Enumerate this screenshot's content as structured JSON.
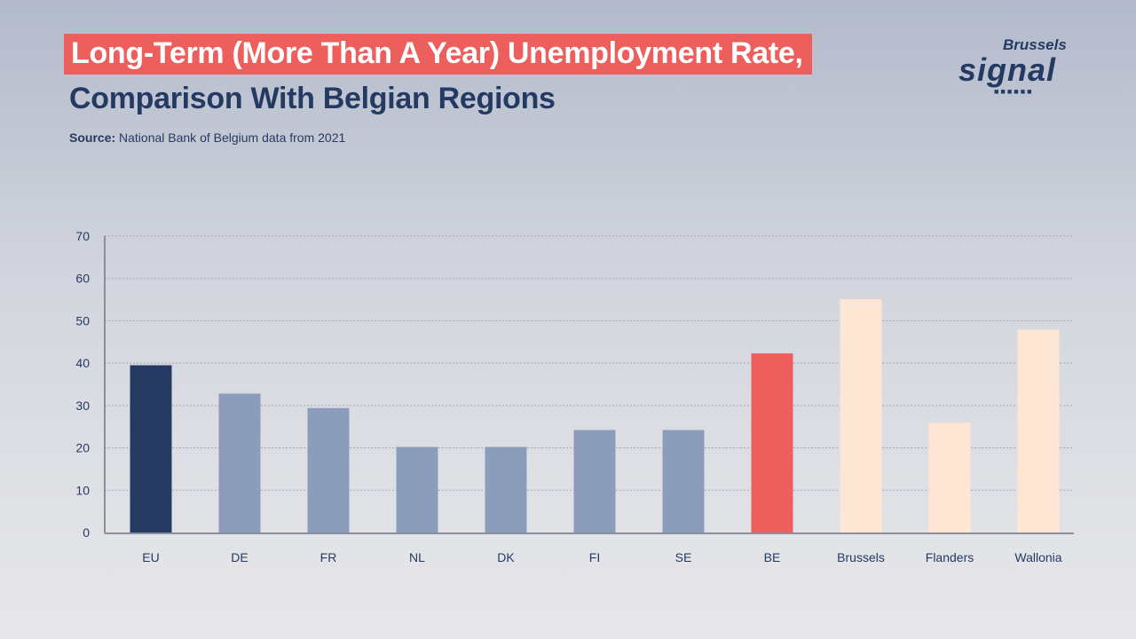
{
  "header": {
    "title_line1": "Long-Term (More Than A Year) Unemployment Rate,",
    "title_line2": "Comparison With Belgian Regions",
    "source_label": "Source:",
    "source_text": "National Bank of Belgium data from 2021"
  },
  "logo": {
    "top": "Brussels",
    "main": "signal",
    "dots": "■■■■■■"
  },
  "chart_data": {
    "type": "bar",
    "title": "Long-Term (More Than A Year) Unemployment Rate, Comparison With Belgian Regions",
    "xlabel": "",
    "ylabel": "",
    "ylim": [
      0,
      70
    ],
    "yticks": [
      0,
      10,
      20,
      30,
      40,
      50,
      60,
      70
    ],
    "grid": true,
    "categories": [
      "EU",
      "DE",
      "FR",
      "NL",
      "DK",
      "FI",
      "SE",
      "BE",
      "Brussels",
      "Flanders",
      "Wallonia"
    ],
    "values": [
      39.5,
      32.8,
      29.4,
      20.2,
      20.2,
      24.2,
      24.2,
      42.3,
      55.1,
      25.9,
      47.9
    ],
    "colors": [
      "#263a63",
      "#8b9dbb",
      "#8b9dbb",
      "#8b9dbb",
      "#8b9dbb",
      "#8b9dbb",
      "#8b9dbb",
      "#ec5f5c",
      "#fde6d3",
      "#fde6d3",
      "#fde6d3"
    ]
  }
}
